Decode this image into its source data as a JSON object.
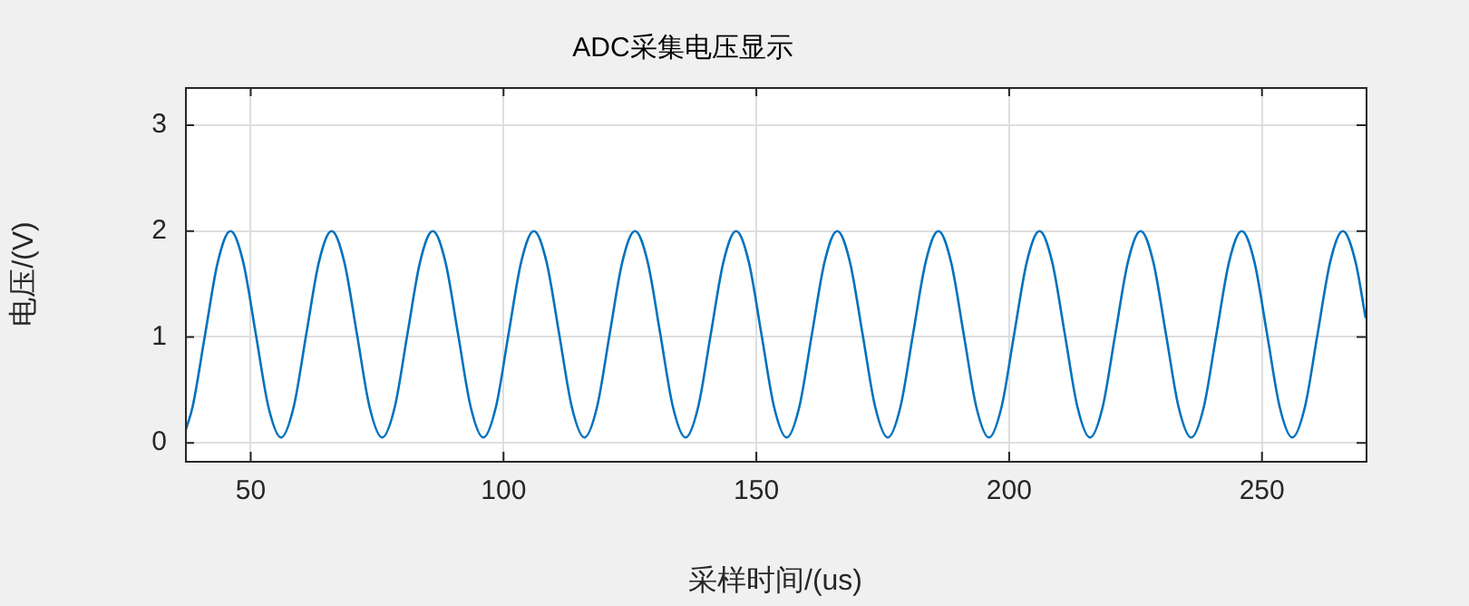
{
  "chart_data": {
    "type": "line",
    "title": "ADC采集电压显示",
    "xlabel": "采样时间/(us)",
    "ylabel": "电压/(V)",
    "x": [
      37,
      38.5,
      41,
      43.5,
      46,
      48.5,
      51,
      53.5,
      56,
      58.5,
      61,
      63.5,
      66,
      68.5,
      71,
      73.5,
      76,
      78.5,
      81,
      83.5,
      86,
      88.5,
      91,
      93.5,
      96,
      98.5,
      101,
      103.5,
      106,
      108.5,
      111,
      113.5,
      116,
      118.5,
      121,
      123.5,
      126,
      128.5,
      131,
      133.5,
      136,
      138.5,
      141,
      143.5,
      146,
      148.5,
      151,
      153.5,
      156,
      158.5,
      161,
      163.5,
      166,
      168.5,
      171,
      173.5,
      176,
      178.5,
      181,
      183.5,
      186,
      188.5,
      191,
      193.5,
      196,
      198.5,
      201,
      203.5,
      206,
      208.5,
      211,
      213.5,
      216,
      218.5,
      221,
      223.5,
      226,
      228.5,
      231,
      233.5,
      236,
      238.5,
      241,
      243.5,
      246,
      248.5,
      251,
      253.5,
      256,
      258.5,
      261,
      263.5,
      266,
      268.5,
      270.5
    ],
    "series": [
      {
        "color": "#0072bd",
        "values": [
          0.1,
          0.34,
          1.03,
          1.71,
          2,
          1.71,
          1.03,
          0.34,
          0.05,
          0.34,
          1.03,
          1.71,
          2,
          1.71,
          1.03,
          0.34,
          0.05,
          0.34,
          1.03,
          1.71,
          2,
          1.71,
          1.03,
          0.34,
          0.05,
          0.34,
          1.03,
          1.71,
          2,
          1.71,
          1.03,
          0.34,
          0.05,
          0.34,
          1.03,
          1.71,
          2,
          1.71,
          1.03,
          0.34,
          0.05,
          0.34,
          1.03,
          1.71,
          2,
          1.71,
          1.03,
          0.34,
          0.05,
          0.34,
          1.03,
          1.71,
          2,
          1.71,
          1.03,
          0.34,
          0.05,
          0.34,
          1.03,
          1.71,
          2,
          1.71,
          1.03,
          0.34,
          0.05,
          0.34,
          1.03,
          1.71,
          2,
          1.71,
          1.03,
          0.34,
          0.05,
          0.34,
          1.03,
          1.71,
          2,
          1.71,
          1.03,
          0.34,
          0.05,
          0.34,
          1.03,
          1.71,
          2,
          1.71,
          1.03,
          0.34,
          0.05,
          0.34,
          1.03,
          1.71,
          2,
          1.71,
          1.18
        ]
      }
    ],
    "xlim": [
      37,
      270.5
    ],
    "xticks": [
      50,
      100,
      150,
      200,
      250
    ],
    "ylim": [
      -0.17,
      3.36
    ],
    "yticks": [
      0,
      1,
      2,
      3
    ],
    "grid": true,
    "legend": false,
    "marker": "none",
    "line_style": "solid"
  }
}
